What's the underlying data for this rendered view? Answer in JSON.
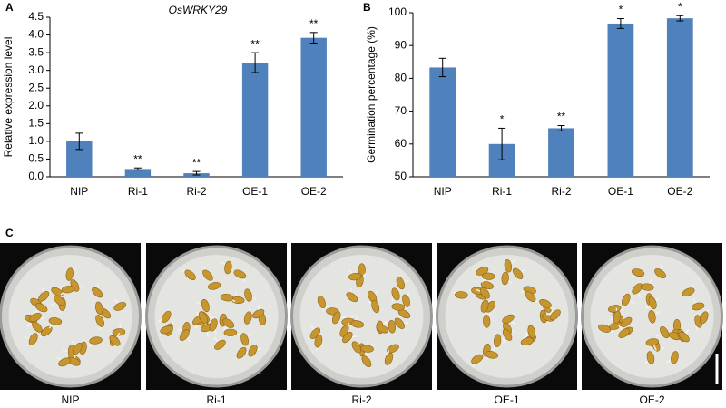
{
  "chart_data": [
    {
      "type": "bar",
      "panel": "A",
      "title": "OsWRKY29",
      "y_label": "Relative expression level",
      "categories": [
        "NIP",
        "Ri-1",
        "Ri-2",
        "OE-1",
        "OE-2"
      ],
      "values": [
        1.0,
        0.22,
        0.1,
        3.22,
        3.92
      ],
      "errors": [
        0.23,
        0.03,
        0.05,
        0.28,
        0.15
      ],
      "annotations": [
        null,
        "**",
        "**",
        "**",
        "**"
      ],
      "color": "#4f81bd",
      "ylim": [
        0,
        4.5
      ],
      "yticks": [
        {
          "value": 0,
          "label": "0.0"
        },
        0.5,
        {
          "value": 1,
          "label": "1.0"
        },
        1.5,
        {
          "value": 2,
          "label": "2.0"
        },
        2.5,
        {
          "value": 3,
          "label": "3.0"
        },
        3.5,
        {
          "value": 4,
          "label": "4.0"
        },
        4.5
      ],
      "grid": false
    },
    {
      "type": "bar",
      "panel": "B",
      "y_label": "Germination percentage (%)",
      "categories": [
        "NIP",
        "Ri-1",
        "Ri-2",
        "OE-1",
        "OE-2"
      ],
      "values": [
        83.3,
        60,
        64.8,
        96.7,
        98.3
      ],
      "errors": [
        2.8,
        4.8,
        0.8,
        1.5,
        0.8
      ],
      "annotations": [
        null,
        "*",
        "**",
        "*",
        "*"
      ],
      "color": "#4f81bd",
      "ylim": [
        50,
        100
      ],
      "yticks": [
        50,
        60,
        70,
        80,
        90,
        100
      ],
      "grid": false
    }
  ],
  "panel_c": {
    "label": "C",
    "captions": [
      "NIP",
      "Ri-1",
      "Ri-2",
      "OE-1",
      "OE-2"
    ]
  }
}
